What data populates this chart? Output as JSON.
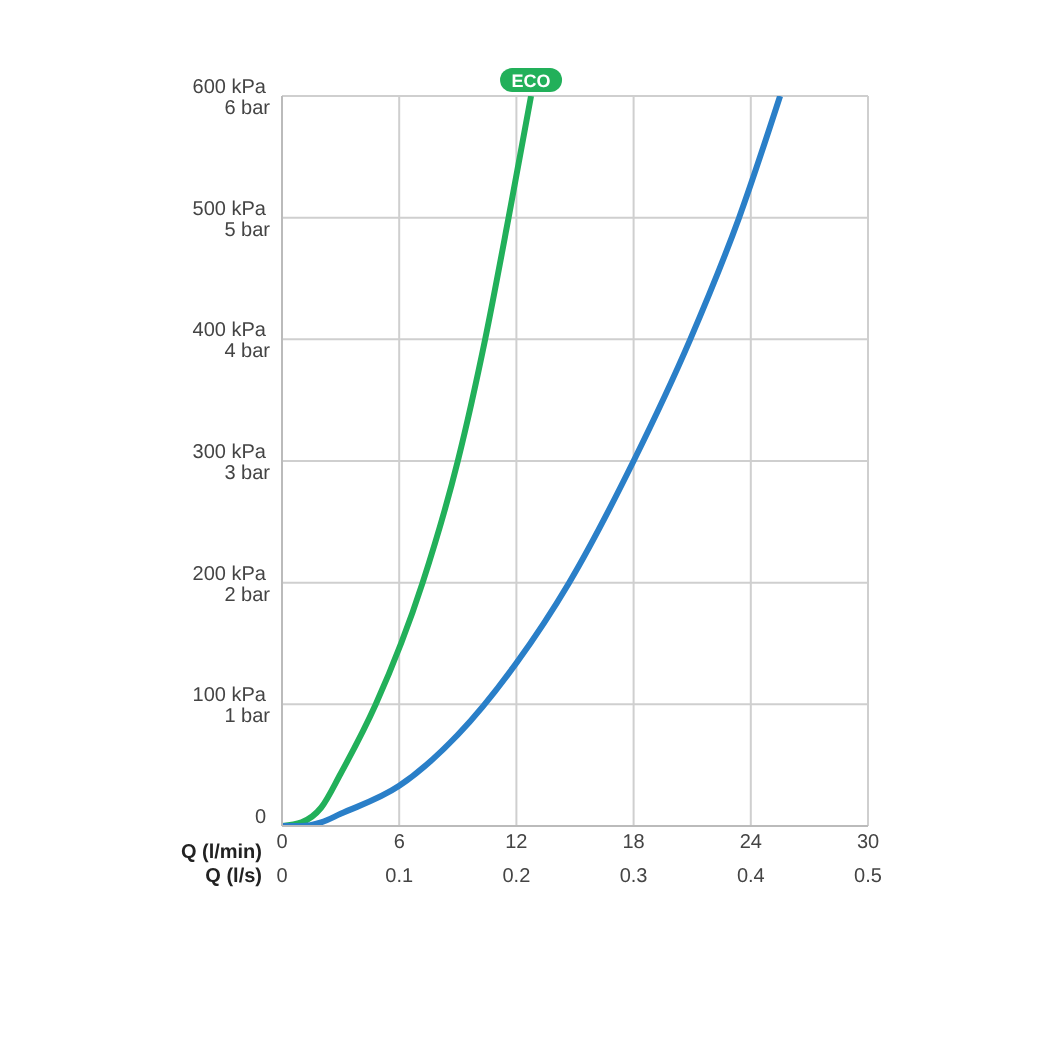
{
  "chart_data": {
    "type": "line",
    "xlabel": "Q (l/min)",
    "x2label": "Q (l/s)",
    "xlim": [
      0,
      30
    ],
    "xticks": [
      0,
      6,
      12,
      18,
      24,
      30
    ],
    "x2lim": [
      0,
      0.5
    ],
    "x2ticks": [
      0,
      0.1,
      0.2,
      0.3,
      0.4,
      0.5
    ],
    "ylim": [
      0,
      600
    ],
    "yticks": [
      0,
      {
        "value": 100,
        "label": "100 kPa"
      },
      {
        "value": 200,
        "label": "200 kPa"
      },
      {
        "value": 300,
        "label": "300 kPa"
      },
      {
        "value": 400,
        "label": "400 kPa"
      },
      {
        "value": 500,
        "label": "500 kPa"
      },
      {
        "value": 600,
        "label": "600 kPa"
      }
    ],
    "y2lim": [
      0,
      6
    ],
    "y2ticks": [
      {
        "value": 1,
        "label": "1 bar"
      },
      {
        "value": 2,
        "label": "2 bar"
      },
      {
        "value": 3,
        "label": "3 bar"
      },
      {
        "value": 4,
        "label": "4 bar"
      },
      {
        "value": 5,
        "label": "5 bar"
      },
      {
        "value": 6,
        "label": "6 bar"
      }
    ],
    "grid": true,
    "marker": "none",
    "line_style": "solid",
    "series": [
      {
        "name": "ECO",
        "color": "#22b05a",
        "x": [
          0,
          1,
          2,
          3,
          4.8,
          7.2,
          9,
          10.4,
          11.6,
          12.75
        ],
        "values": [
          0,
          3,
          15,
          43,
          100,
          200,
          300,
          400,
          500,
          600
        ]
      },
      {
        "color": "#2a7fc8",
        "x": [
          0,
          1,
          2,
          3,
          6,
          9,
          12,
          14.7,
          18,
          20.9,
          23.4,
          25.5
        ],
        "values": [
          0,
          0,
          3,
          10,
          33,
          75,
          134,
          200,
          300,
          400,
          500,
          600
        ]
      }
    ]
  }
}
